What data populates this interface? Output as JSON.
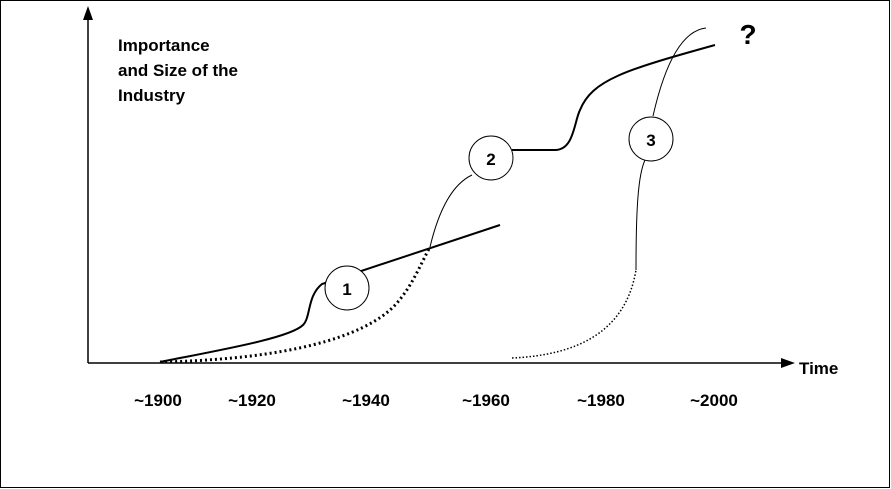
{
  "y_axis_label": [
    "Importance",
    "and Size of the",
    "Industry"
  ],
  "x_axis_label": "Time",
  "time_labels": [
    "~1900",
    "~1920",
    "~1940",
    "~1960",
    "~1980",
    "~2000"
  ],
  "stages": [
    {
      "label": "1"
    },
    {
      "label": "2"
    },
    {
      "label": "3"
    }
  ],
  "question": "?"
}
